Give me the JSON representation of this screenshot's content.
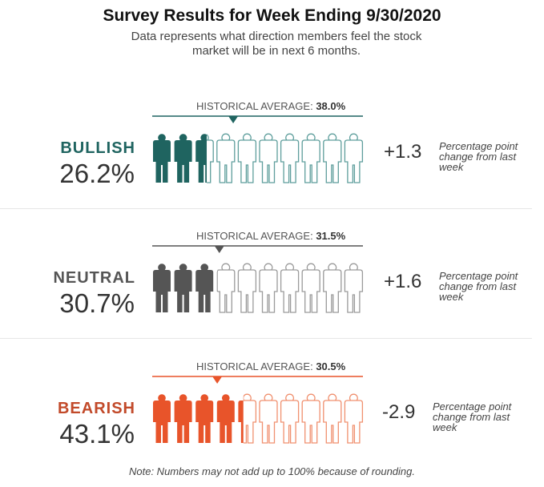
{
  "title": "Survey Results for Week Ending 9/30/2020",
  "subtitle": "Data represents what direction members feel the stock market will be in next 6 months.",
  "note": "Note: Numbers may not add up to 100% because of rounding.",
  "historical_label": "HISTORICAL AVERAGE:",
  "change_note": "Percentage point change from last week",
  "chart_data": {
    "type": "bar",
    "title": "Survey Results for Week Ending 9/30/2020",
    "icons_per_row": 10,
    "categories": [
      "BULLISH",
      "NEUTRAL",
      "BEARISH"
    ],
    "series": [
      {
        "key": "bullish",
        "label": "BULLISH",
        "value": 26.2,
        "value_text": "26.2%",
        "historical_average": 38.0,
        "historical_text": "38.0%",
        "change": 1.3,
        "change_text": "+1.3",
        "color": "#1f6460",
        "light_color": "#5e9e9c"
      },
      {
        "key": "neutral",
        "label": "NEUTRAL",
        "value": 30.7,
        "value_text": "30.7%",
        "historical_average": 31.5,
        "historical_text": "31.5%",
        "change": 1.6,
        "change_text": "+1.6",
        "color": "#555555",
        "light_color": "#9a9a9a"
      },
      {
        "key": "bearish",
        "label": "BEARISH",
        "value": 43.1,
        "value_text": "43.1%",
        "historical_average": 30.5,
        "historical_text": "30.5%",
        "change": -2.9,
        "change_text": "-2.9",
        "color": "#e8542a",
        "light_color": "#f0906f"
      }
    ]
  }
}
